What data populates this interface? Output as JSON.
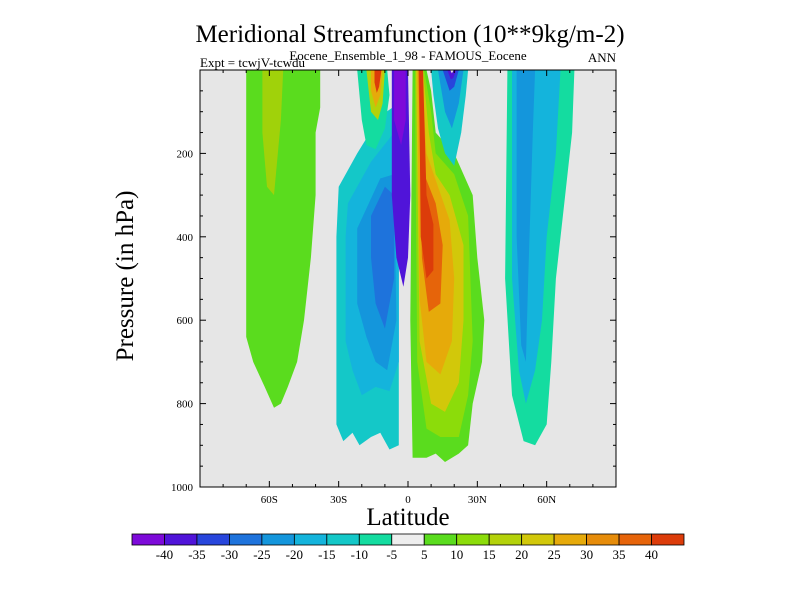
{
  "chart_data": {
    "type": "contour",
    "title": "Meridional Streamfunction (10**9kg/m-2)",
    "subtitle": "Eocene_Ensemble_1_98 - FAMOUS_Eocene",
    "left_label": "Expt = tcwjV-tcwdu",
    "right_label": "ANN",
    "xlabel": "Latitude",
    "ylabel": "Pressure (in hPa)",
    "xlim": [
      -90,
      90
    ],
    "ylim": [
      0,
      1000
    ],
    "y_inverted": true,
    "background_color": "#e6e6e6",
    "x_ticks": [
      {
        "value": -60,
        "label": "60S"
      },
      {
        "value": -30,
        "label": "30S"
      },
      {
        "value": 0,
        "label": "0"
      },
      {
        "value": 30,
        "label": "30N"
      },
      {
        "value": 60,
        "label": "60N"
      }
    ],
    "y_ticks": [
      {
        "value": 200,
        "label": "200"
      },
      {
        "value": 400,
        "label": "400"
      },
      {
        "value": 600,
        "label": "600"
      },
      {
        "value": 800,
        "label": "800"
      },
      {
        "value": 1000,
        "label": "1000"
      }
    ],
    "colorbar": {
      "labels": [
        "-40",
        "-35",
        "-30",
        "-25",
        "-20",
        "-15",
        "-10",
        "-5",
        "5",
        "10",
        "15",
        "20",
        "25",
        "30",
        "35",
        "40"
      ],
      "colors": [
        "#7d0ad9",
        "#5014d9",
        "#2846dc",
        "#1e73dc",
        "#1496dc",
        "#14b4dc",
        "#14c8c8",
        "#14dca0",
        "#eeeeee",
        "#5adc1e",
        "#8cdc0a",
        "#b4d20a",
        "#d2c80a",
        "#e6aa0a",
        "#e68c0a",
        "#e6640a",
        "#dc3c0a"
      ]
    },
    "regions": [
      {
        "name": "sh-green-cell",
        "color": "#5adc1e",
        "points": [
          [
            -70,
            0
          ],
          [
            -38,
            0
          ],
          [
            -38,
            90
          ],
          [
            -40,
            150
          ],
          [
            -40,
            300
          ],
          [
            -42,
            450
          ],
          [
            -45,
            600
          ],
          [
            -48,
            700
          ],
          [
            -52,
            760
          ],
          [
            -55,
            800
          ],
          [
            -58,
            810
          ],
          [
            -62,
            760
          ],
          [
            -67,
            700
          ],
          [
            -70,
            640
          ],
          [
            -70,
            0
          ]
        ]
      },
      {
        "name": "sh-lime-core",
        "color": "#a0d20a",
        "points": [
          [
            -63,
            0
          ],
          [
            -54,
            0
          ],
          [
            -55,
            120
          ],
          [
            -58,
            300
          ],
          [
            -61,
            280
          ],
          [
            -63,
            150
          ],
          [
            -63,
            0
          ]
        ]
      },
      {
        "name": "tropic-cyan-outer",
        "color": "#14c8c8",
        "points": [
          [
            -30,
            280
          ],
          [
            -22,
            200
          ],
          [
            -12,
            110
          ],
          [
            -4,
            80
          ],
          [
            -4,
            900
          ],
          [
            -8,
            910
          ],
          [
            -12,
            870
          ],
          [
            -16,
            880
          ],
          [
            -21,
            900
          ],
          [
            -24,
            870
          ],
          [
            -28,
            890
          ],
          [
            -31,
            850
          ],
          [
            -31,
            400
          ],
          [
            -30,
            280
          ]
        ]
      },
      {
        "name": "tropic-cyan-mid",
        "color": "#14b4dc",
        "points": [
          [
            -26,
            320
          ],
          [
            -16,
            220
          ],
          [
            -6,
            150
          ],
          [
            -4,
            300
          ],
          [
            -4,
            700
          ],
          [
            -8,
            770
          ],
          [
            -14,
            760
          ],
          [
            -20,
            780
          ],
          [
            -24,
            720
          ],
          [
            -27,
            650
          ],
          [
            -27,
            400
          ],
          [
            -26,
            320
          ]
        ]
      },
      {
        "name": "tropic-blue-2",
        "color": "#1496dc",
        "points": [
          [
            -22,
            380
          ],
          [
            -12,
            260
          ],
          [
            -6,
            250
          ],
          [
            -5,
            600
          ],
          [
            -9,
            720
          ],
          [
            -14,
            700
          ],
          [
            -18,
            640
          ],
          [
            -22,
            560
          ],
          [
            -22,
            380
          ]
        ]
      },
      {
        "name": "tropic-blue-3",
        "color": "#1e73dc",
        "points": [
          [
            -16,
            350
          ],
          [
            -10,
            280
          ],
          [
            -6,
            300
          ],
          [
            -6,
            500
          ],
          [
            -10,
            620
          ],
          [
            -14,
            560
          ],
          [
            -16,
            450
          ],
          [
            -16,
            350
          ]
        ]
      },
      {
        "name": "sh-upper-cyan",
        "color": "#14dca0",
        "points": [
          [
            -22,
            0
          ],
          [
            -9,
            0
          ],
          [
            -8,
            60
          ],
          [
            -10,
            140
          ],
          [
            -14,
            190
          ],
          [
            -18,
            180
          ],
          [
            -20,
            120
          ],
          [
            -22,
            0
          ]
        ]
      },
      {
        "name": "sh-upper-lime",
        "color": "#b4d20a",
        "points": [
          [
            -18,
            0
          ],
          [
            -10,
            0
          ],
          [
            -11,
            80
          ],
          [
            -13,
            120
          ],
          [
            -16,
            100
          ],
          [
            -18,
            0
          ]
        ]
      },
      {
        "name": "sh-upper-orange",
        "color": "#e6aa0a",
        "points": [
          [
            -16,
            0
          ],
          [
            -11,
            0
          ],
          [
            -12,
            60
          ],
          [
            -14,
            90
          ],
          [
            -16,
            50
          ],
          [
            -16,
            0
          ]
        ]
      },
      {
        "name": "sh-upper-red",
        "color": "#dc3c0a",
        "points": [
          [
            -14.5,
            0
          ],
          [
            -11.5,
            0
          ],
          [
            -12.5,
            40
          ],
          [
            -13.5,
            55
          ],
          [
            -14.5,
            30
          ],
          [
            -14.5,
            0
          ]
        ]
      },
      {
        "name": "eq-purple-shell",
        "color": "#5014d9",
        "points": [
          [
            -7,
            0
          ],
          [
            0,
            0
          ],
          [
            1,
            300
          ],
          [
            0,
            450
          ],
          [
            -2,
            520
          ],
          [
            -5,
            450
          ],
          [
            -7,
            300
          ],
          [
            -7,
            0
          ]
        ]
      },
      {
        "name": "eq-purple-core",
        "color": "#7d0ad9",
        "points": [
          [
            -6,
            0
          ],
          [
            -1,
            0
          ],
          [
            -1,
            120
          ],
          [
            -3,
            180
          ],
          [
            -6,
            120
          ],
          [
            -6,
            0
          ]
        ]
      },
      {
        "name": "nh-green-outer",
        "color": "#5adc1e",
        "points": [
          [
            2,
            0
          ],
          [
            8,
            0
          ],
          [
            10,
            50
          ],
          [
            12,
            150
          ],
          [
            20,
            200
          ],
          [
            28,
            300
          ],
          [
            30,
            450
          ],
          [
            33,
            600
          ],
          [
            32,
            700
          ],
          [
            28,
            800
          ],
          [
            26,
            900
          ],
          [
            22,
            920
          ],
          [
            16,
            940
          ],
          [
            12,
            920
          ],
          [
            8,
            930
          ],
          [
            2,
            930
          ],
          [
            1,
            600
          ],
          [
            2,
            0
          ]
        ]
      },
      {
        "name": "nh-lime",
        "color": "#8cdc0a",
        "points": [
          [
            3,
            0
          ],
          [
            7,
            0
          ],
          [
            10,
            100
          ],
          [
            12,
            200
          ],
          [
            20,
            250
          ],
          [
            26,
            350
          ],
          [
            27,
            500
          ],
          [
            28,
            650
          ],
          [
            26,
            780
          ],
          [
            22,
            880
          ],
          [
            14,
            880
          ],
          [
            8,
            860
          ],
          [
            4,
            700
          ],
          [
            3,
            0
          ]
        ]
      },
      {
        "name": "nh-yellow",
        "color": "#d2c80a",
        "points": [
          [
            3.5,
            0
          ],
          [
            6.5,
            0
          ],
          [
            9,
            150
          ],
          [
            12,
            250
          ],
          [
            18,
            300
          ],
          [
            24,
            420
          ],
          [
            24,
            600
          ],
          [
            22,
            750
          ],
          [
            16,
            820
          ],
          [
            10,
            800
          ],
          [
            5,
            650
          ],
          [
            3.5,
            0
          ]
        ]
      },
      {
        "name": "nh-orange",
        "color": "#e6aa0a",
        "points": [
          [
            4,
            0
          ],
          [
            6,
            0
          ],
          [
            8,
            200
          ],
          [
            13,
            280
          ],
          [
            18,
            360
          ],
          [
            20,
            500
          ],
          [
            19,
            650
          ],
          [
            14,
            730
          ],
          [
            8,
            700
          ],
          [
            5,
            550
          ],
          [
            4,
            0
          ]
        ]
      },
      {
        "name": "nh-dark-orange",
        "color": "#e6640a",
        "points": [
          [
            4.5,
            0
          ],
          [
            5.5,
            0
          ],
          [
            7,
            250
          ],
          [
            12,
            320
          ],
          [
            15,
            420
          ],
          [
            14,
            560
          ],
          [
            9,
            580
          ],
          [
            6,
            450
          ],
          [
            4.5,
            0
          ]
        ]
      },
      {
        "name": "nh-red-core",
        "color": "#dc3c0a",
        "points": [
          [
            4.8,
            0
          ],
          [
            6.5,
            0
          ],
          [
            8,
            300
          ],
          [
            11,
            370
          ],
          [
            11,
            480
          ],
          [
            8,
            500
          ],
          [
            5.5,
            400
          ],
          [
            4.8,
            0
          ]
        ]
      },
      {
        "name": "nh-upper-cyan",
        "color": "#14c8c8",
        "points": [
          [
            10,
            0
          ],
          [
            26,
            0
          ],
          [
            25,
            60
          ],
          [
            23,
            150
          ],
          [
            20,
            230
          ],
          [
            16,
            200
          ],
          [
            13,
            140
          ],
          [
            11,
            60
          ],
          [
            10,
            0
          ]
        ]
      },
      {
        "name": "nh-upper-blue",
        "color": "#1496dc",
        "points": [
          [
            13,
            0
          ],
          [
            24,
            0
          ],
          [
            22,
            80
          ],
          [
            19,
            140
          ],
          [
            16,
            100
          ],
          [
            13,
            0
          ]
        ]
      },
      {
        "name": "nh-upper-dkblue",
        "color": "#2846dc",
        "points": [
          [
            15,
            0
          ],
          [
            22,
            0
          ],
          [
            20,
            40
          ],
          [
            18,
            50
          ],
          [
            15,
            0
          ]
        ]
      },
      {
        "name": "nh-upper-purple",
        "color": "#5014d9",
        "points": [
          [
            17,
            0
          ],
          [
            21,
            0
          ],
          [
            19.5,
            20
          ],
          [
            18.5,
            22
          ],
          [
            17,
            0
          ]
        ]
      },
      {
        "name": "nh-upper-gap",
        "color": "#eeeeee",
        "points": [
          [
            18.2,
            0
          ],
          [
            19.8,
            0
          ],
          [
            19,
            8
          ],
          [
            18.2,
            0
          ]
        ]
      },
      {
        "name": "nhmid-teal-outer",
        "color": "#14dca0",
        "points": [
          [
            43,
            0
          ],
          [
            72,
            0
          ],
          [
            71,
            150
          ],
          [
            68,
            300
          ],
          [
            64,
            500
          ],
          [
            62,
            700
          ],
          [
            60,
            850
          ],
          [
            55,
            900
          ],
          [
            50,
            890
          ],
          [
            45,
            780
          ],
          [
            42,
            500
          ],
          [
            43,
            0
          ]
        ]
      },
      {
        "name": "nhmid-cyan",
        "color": "#14b4dc",
        "points": [
          [
            45,
            0
          ],
          [
            66,
            0
          ],
          [
            64,
            200
          ],
          [
            60,
            400
          ],
          [
            58,
            600
          ],
          [
            55,
            720
          ],
          [
            51,
            800
          ],
          [
            48,
            720
          ],
          [
            45,
            500
          ],
          [
            45,
            0
          ]
        ]
      },
      {
        "name": "nhmid-blue",
        "color": "#1496dc",
        "points": [
          [
            47,
            0
          ],
          [
            55,
            0
          ],
          [
            54,
            150
          ],
          [
            52,
            500
          ],
          [
            51,
            700
          ],
          [
            49,
            660
          ],
          [
            47,
            400
          ],
          [
            47,
            0
          ]
        ]
      },
      {
        "name": "nhmid-cyan-notch",
        "color": "#14b4dc",
        "points": [
          [
            56,
            0
          ],
          [
            62,
            0
          ],
          [
            58,
            120
          ],
          [
            56,
            0
          ]
        ]
      }
    ]
  }
}
